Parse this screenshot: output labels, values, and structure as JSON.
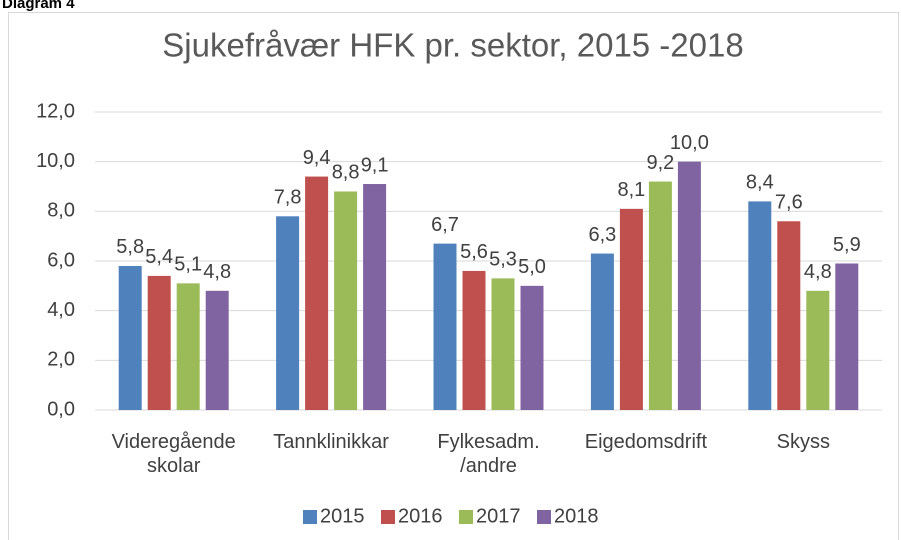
{
  "chart_data": {
    "type": "bar",
    "caption": "Diagram 4",
    "title": "Sjukefråvær HFK pr. sektor, 2015 -2018",
    "categories": [
      "Videregående skolar",
      "Tannklinikkar",
      "Fylkesadm. /andre",
      "Eigedomsdrift",
      "Skyss"
    ],
    "series": [
      {
        "name": "2015",
        "color": "#4f81bd",
        "values": [
          5.8,
          7.8,
          6.7,
          6.3,
          8.4
        ],
        "value_labels": [
          "5,8",
          "7,8",
          "6,7",
          "6,3",
          "8,4"
        ]
      },
      {
        "name": "2016",
        "color": "#c0504d",
        "values": [
          5.4,
          9.4,
          5.6,
          8.1,
          7.6
        ],
        "value_labels": [
          "5,4",
          "9,4",
          "5,6",
          "8,1",
          "7,6"
        ]
      },
      {
        "name": "2017",
        "color": "#9bbb59",
        "values": [
          5.1,
          8.8,
          5.3,
          9.2,
          4.8
        ],
        "value_labels": [
          "5,1",
          "8,8",
          "5,3",
          "9,2",
          "4,8"
        ]
      },
      {
        "name": "2018",
        "color": "#8064a2",
        "values": [
          4.8,
          9.1,
          5.0,
          10.0,
          5.9
        ],
        "value_labels": [
          "4,8",
          "9,1",
          "5,0",
          "10,0",
          "5,9"
        ]
      }
    ],
    "ylim": [
      0,
      12
    ],
    "yticks": [
      {
        "value": 0,
        "label": "0,0"
      },
      {
        "value": 2,
        "label": "2,0"
      },
      {
        "value": 4,
        "label": "4,0"
      },
      {
        "value": 6,
        "label": "6,0"
      },
      {
        "value": 8,
        "label": "8,0"
      },
      {
        "value": 10,
        "label": "10,0"
      },
      {
        "value": 12,
        "label": "12,0"
      }
    ],
    "grid": true,
    "legend": "bottom"
  }
}
